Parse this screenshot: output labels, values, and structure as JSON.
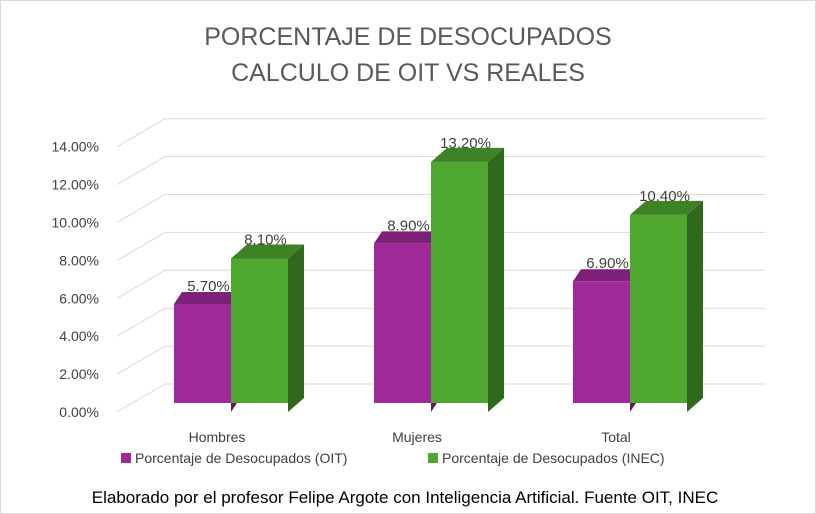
{
  "chart_data": {
    "type": "bar",
    "title_lines": [
      "PORCENTAJE DE DESOCUPADOS",
      "CALCULO  DE OIT  VS REALES"
    ],
    "categories": [
      "Hombres",
      "Mujeres",
      "Total"
    ],
    "series": [
      {
        "name": "Porcentaje de Desocupados (OIT)",
        "values": [
          5.7,
          8.9,
          6.9
        ],
        "labels": [
          "5.70%",
          "8.90%",
          "6.90%"
        ],
        "color": "#a0299a"
      },
      {
        "name": "Porcentaje de Desocupados (INEC)",
        "values": [
          8.1,
          13.2,
          10.4
        ],
        "labels": [
          "8.10%",
          "13.20%",
          "10.40%"
        ],
        "color": "#4ea72e"
      }
    ],
    "ylim": [
      0,
      14
    ],
    "yticks": [
      0,
      2,
      4,
      6,
      8,
      10,
      12,
      14
    ],
    "ytick_labels": [
      "0.00%",
      "2.00%",
      "4.00%",
      "6.00%",
      "8.00%",
      "10.00%",
      "12.00%",
      "14.00%"
    ],
    "grid": true,
    "style": "3d-clustered-column",
    "legend_position": "bottom",
    "source_note": "Elaborado por el profesor Felipe Argote con Inteligencia Artificial. Fuente OIT, INEC"
  }
}
